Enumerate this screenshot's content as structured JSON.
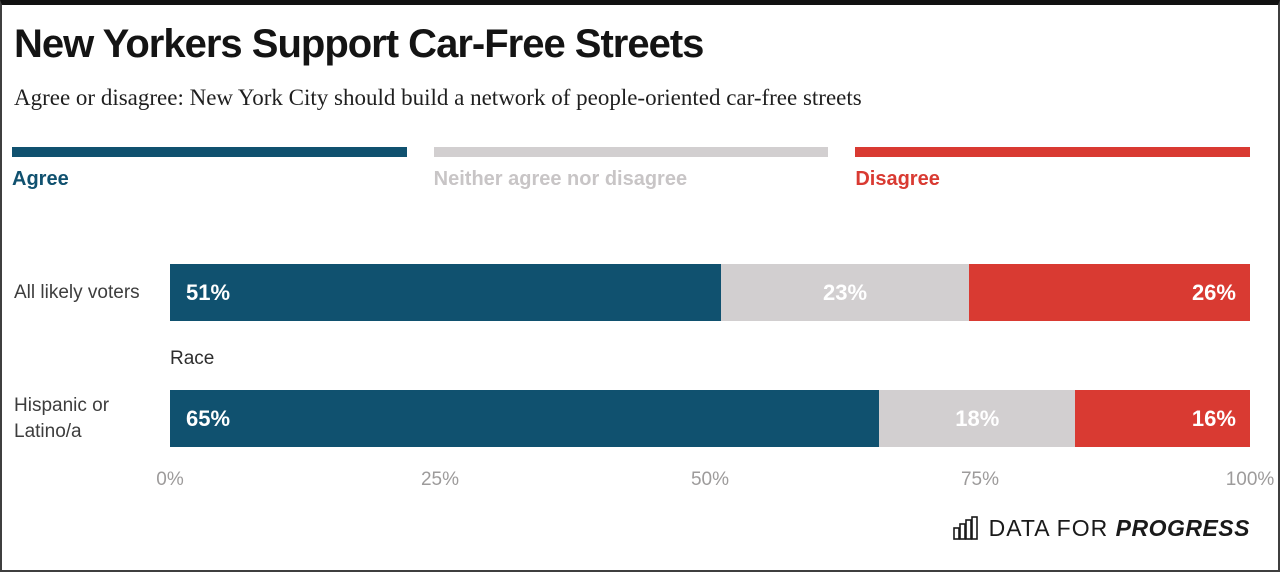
{
  "title": "New Yorkers Support Car-Free Streets",
  "subtitle": "Agree or disagree: New York City should build a network of people-oriented car-free streets",
  "legend": [
    {
      "label": "Agree",
      "color": "#10516F",
      "text_color": "#10516F"
    },
    {
      "label": "Neither agree nor disagree",
      "color": "#D2CFD0",
      "text_color": "#C8C5C6"
    },
    {
      "label": "Disagree",
      "color": "#D93A32",
      "text_color": "#D93A32"
    }
  ],
  "chart_data": {
    "type": "bar",
    "orientation": "horizontal-stacked",
    "title": "New Yorkers Support Car-Free Streets",
    "subtitle": "Agree or disagree: New York City should build a network of people-oriented car-free streets",
    "series_names": [
      "Agree",
      "Neither agree nor disagree",
      "Disagree"
    ],
    "series_colors": [
      "#10516F",
      "#D2CFD0",
      "#D93A32"
    ],
    "section_label": "Race",
    "rows": [
      {
        "category": "All likely voters",
        "values": [
          51,
          23,
          26
        ],
        "labels": [
          "51%",
          "23%",
          "26%"
        ]
      },
      {
        "category": "Hispanic or Latino/a",
        "group": "Race",
        "values": [
          65,
          18,
          16
        ],
        "labels": [
          "65%",
          "18%",
          "16%"
        ]
      }
    ],
    "x_ticks": [
      "0%",
      "25%",
      "50%",
      "75%",
      "100%"
    ],
    "xlim": [
      0,
      100
    ],
    "value_labels_inside": true,
    "legend_position": "top",
    "grid": false
  },
  "footer": {
    "brand_prefix": "DATA FOR",
    "brand_suffix": "PROGRESS"
  }
}
